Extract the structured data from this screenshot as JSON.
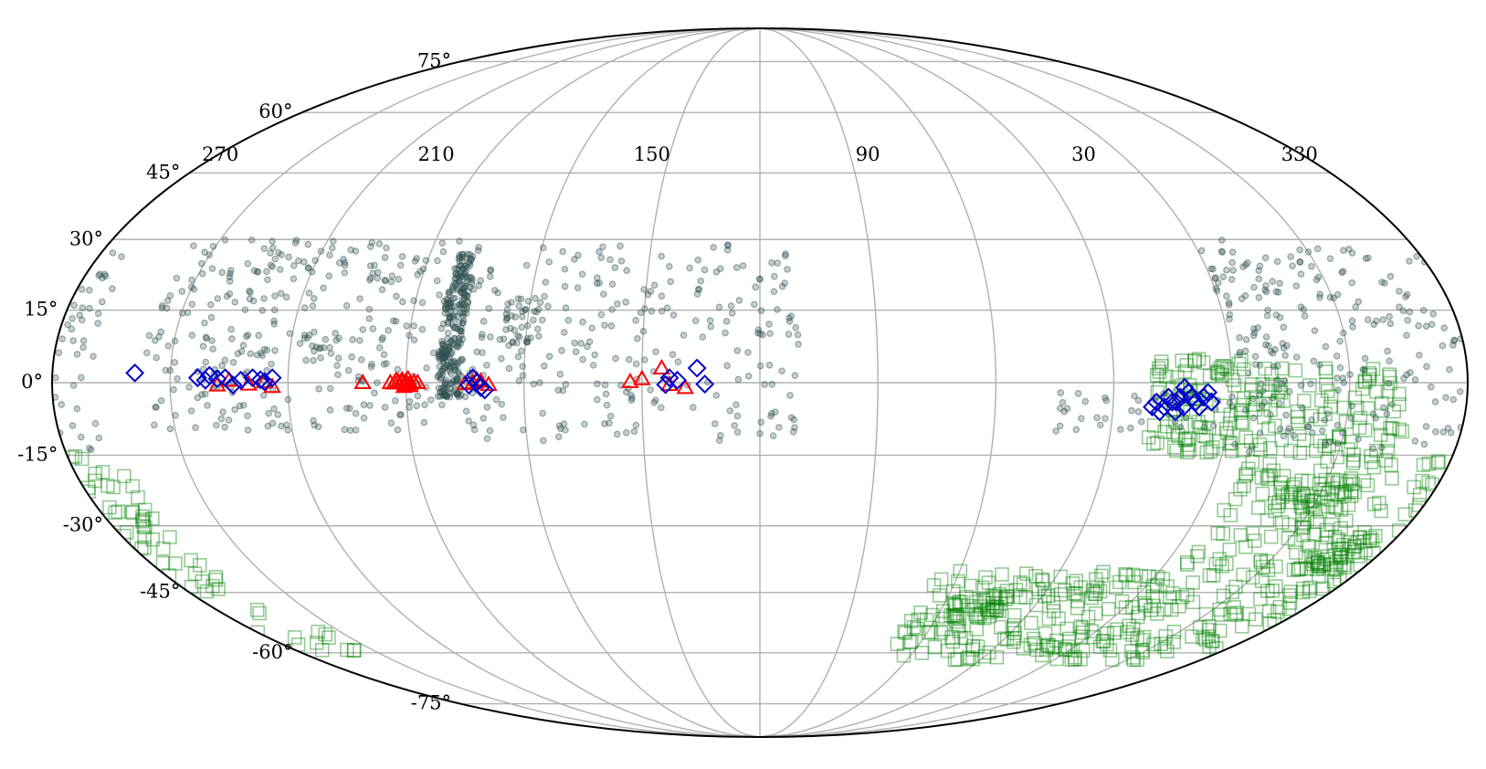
{
  "chart_data": {
    "type": "scatter",
    "projection": "mollweide",
    "title": "",
    "xlabel": "",
    "ylabel": "",
    "grid": true,
    "legend": "none",
    "lon_ticks": [
      "270",
      "210",
      "150",
      "90",
      "30",
      "330"
    ],
    "lon_tick_values": [
      270,
      210,
      150,
      90,
      30,
      330
    ],
    "lat_ticks": [
      "75°",
      "60°",
      "45°",
      "30°",
      "15°",
      "0°",
      "-15°",
      "-30°",
      "-45°",
      "-60°",
      "-75°"
    ],
    "lat_tick_values": [
      75,
      60,
      45,
      30,
      15,
      0,
      -15,
      -30,
      -45,
      -60,
      -75
    ],
    "colors": {
      "circles": "#2f4f4f",
      "squares": "#008000",
      "triangles": "#ff0000",
      "diamonds": "#0000cc",
      "grid": "#b0b0b0",
      "frame": "#000000"
    },
    "series": [
      {
        "marker": "circle",
        "color": "#2f4f4f",
        "clusters": [
          {
            "lon": [
              200,
              277
            ],
            "lat": [
              -10,
              30
            ],
            "n": 320
          },
          {
            "lon": [
              110,
              200
            ],
            "lat": [
              -12,
              30
            ],
            "n": 260
          },
          {
            "lon": [
              196,
              202
            ],
            "lat": [
              -3,
              22
            ],
            "n": 220
          },
          {
            "lon": [
              198,
              202
            ],
            "lat": [
              22,
              27
            ],
            "n": 40
          },
          {
            "lon": [
              176,
              186
            ],
            "lat": [
              8,
              18
            ],
            "n": 40
          },
          {
            "lon": [
              345,
              360
            ],
            "lat": [
              -15,
              30
            ],
            "n": 90
          },
          {
            "lon": [
              290,
              345
            ],
            "lat": [
              -14,
              28
            ],
            "n": 180
          },
          {
            "lon": [
              0,
              45
            ],
            "lat": [
              -10,
              -2
            ],
            "n": 40
          }
        ]
      },
      {
        "marker": "square",
        "color": "#008000",
        "clusters": [
          {
            "lon": [
              -75,
              -5
            ],
            "lat": [
              -62,
              -15
            ],
            "n": 280
          },
          {
            "lon": [
              -5,
              70
            ],
            "lat": [
              -62,
              -40
            ],
            "n": 150
          },
          {
            "lon": [
              -5,
              20
            ],
            "lat": [
              -15,
              5
            ],
            "n": 90
          },
          {
            "lon": [
              -45,
              -5
            ],
            "lat": [
              -15,
              3
            ],
            "n": 90
          },
          {
            "lon": [
              -40,
              -20
            ],
            "lat": [
              -28,
              -20
            ],
            "n": 40
          },
          {
            "lon": [
              -55,
              -40
            ],
            "lat": [
              -40,
              -32
            ],
            "n": 40
          },
          {
            "lon": [
              40,
              60
            ],
            "lat": [
              -52,
              -45
            ],
            "n": 40
          },
          {
            "lon": [
              -85,
              -80
            ],
            "lat": [
              -60,
              -54
            ],
            "n": 6
          }
        ]
      },
      {
        "marker": "triangle",
        "color": "#ff0000",
        "points": [
          [
            211,
            0
          ],
          [
            210,
            0.3
          ],
          [
            209,
            -0.2
          ],
          [
            212,
            0.2
          ],
          [
            208,
            0.1
          ],
          [
            213,
            -0.1
          ],
          [
            210,
            -0.5
          ],
          [
            211,
            0.6
          ],
          [
            209.5,
            0.8
          ],
          [
            212.5,
            0.5
          ],
          [
            207,
            0
          ],
          [
            214,
            0
          ],
          [
            210.5,
            -0.8
          ],
          [
            209,
            -0.6
          ],
          [
            193,
            0
          ],
          [
            191,
            0.3
          ],
          [
            189,
            -0.4
          ],
          [
            192,
            0.6
          ],
          [
            195,
            -0.2
          ],
          [
            221,
            0
          ],
          [
            258,
            -0.5
          ],
          [
            255,
            0.5
          ],
          [
            250,
            -0.3
          ],
          [
            246,
            0.2
          ],
          [
            244,
            -0.8
          ],
          [
            153,
            0.2
          ],
          [
            150,
            0.8
          ],
          [
            143,
            -0.4
          ],
          [
            145,
            3
          ],
          [
            139,
            -1
          ]
        ]
      },
      {
        "marker": "diamond",
        "color": "#0000cc",
        "points": [
          [
            263,
            1
          ],
          [
            261,
            0.5
          ],
          [
            260,
            1.5
          ],
          [
            258,
            0.8
          ],
          [
            256,
            1
          ],
          [
            254,
            -0.5
          ],
          [
            252,
            0.5
          ],
          [
            249,
            1
          ],
          [
            247,
            0.6
          ],
          [
            246,
            0.2
          ],
          [
            244,
            1
          ],
          [
            193,
            1
          ],
          [
            192,
            0
          ],
          [
            191,
            -1
          ],
          [
            190,
            -1.5
          ],
          [
            194,
            -0.5
          ],
          [
            143,
            1
          ],
          [
            141,
            0.5
          ],
          [
            136,
            3
          ],
          [
            134,
            -0.3
          ],
          [
            144,
            -0.4
          ],
          [
            15,
            -4
          ],
          [
            17,
            -5
          ],
          [
            18,
            -6
          ],
          [
            20,
            -5
          ],
          [
            14,
            -4
          ],
          [
            13,
            -3
          ],
          [
            12,
            -5
          ],
          [
            11,
            -2
          ],
          [
            10,
            -3
          ],
          [
            9,
            -4
          ],
          [
            8,
            -5
          ],
          [
            7,
            -3
          ],
          [
            6,
            -2
          ],
          [
            5,
            -4
          ],
          [
            16,
            -3
          ],
          [
            19,
            -4
          ],
          [
            12,
            -1
          ],
          [
            14,
            -6
          ],
          [
            -81,
            2
          ]
        ]
      }
    ]
  }
}
